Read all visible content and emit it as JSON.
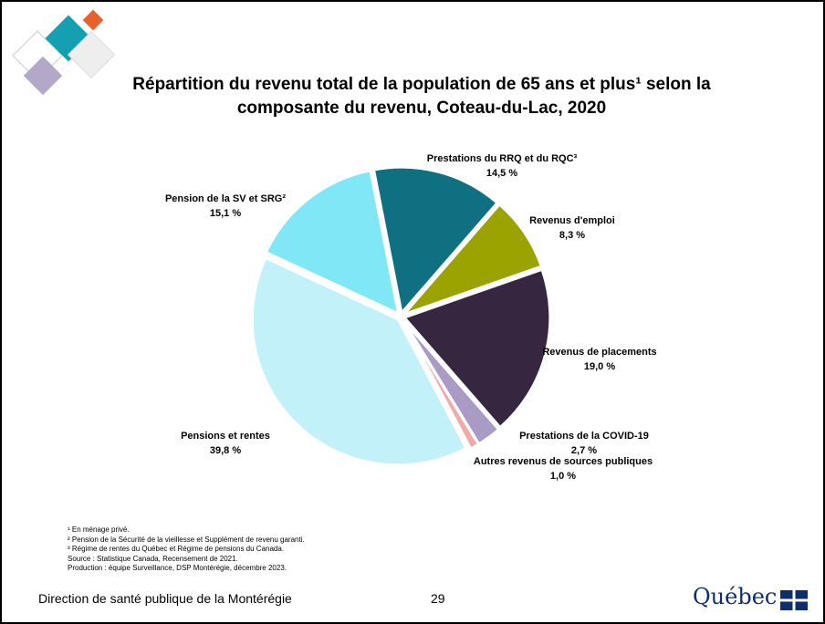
{
  "chart_data": {
    "type": "pie",
    "title": "Répartition du revenu total de la population de 65 ans et plus¹ selon la composante du revenu, Coteau-du-Lac, 2020",
    "categories": [
      "Prestations du RRQ et du RQC³",
      "Revenus d'emploi",
      "Revenus de placements",
      "Prestations de la COVID-19",
      "Autres revenus de sources publiques",
      "Pensions et rentes",
      "Pension de la SV et SRG²"
    ],
    "values": [
      14.5,
      8.3,
      19.0,
      2.7,
      1.0,
      39.8,
      15.1
    ],
    "value_labels": [
      "14,5 %",
      "8,3 %",
      "19,0 %",
      "2,7 %",
      "1,0 %",
      "39,8 %",
      "15,1 %"
    ],
    "colors": [
      "#0e7080",
      "#9aa300",
      "#372640",
      "#a99ac6",
      "#f2aaa6",
      "#c3f1f9",
      "#80e7f6"
    ]
  },
  "footnotes": [
    "¹ En ménage privé.",
    "² Pension de la Sécurité de la vieillesse et Supplément de revenu garanti.",
    "³ Régime de rentes du Québec et Régime de pensions du Canada.",
    "Source : Statistique Canada, Recensement de 2021.",
    "Production : équipe Surveillance, DSP Montérégie, décembre 2023."
  ],
  "footer": "Direction de santé publique de la Montérégie",
  "page_number": "29",
  "logo": "Québec"
}
